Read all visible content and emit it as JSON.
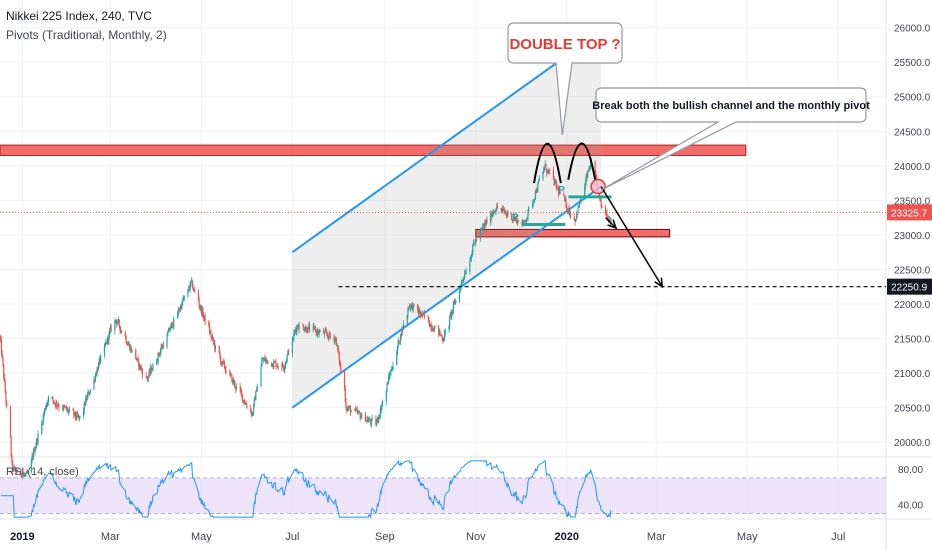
{
  "header": {
    "title": "Nikkei 225 Index, 240, TVC",
    "indicator": "Pivots (Traditional, Monthly, 2)"
  },
  "colors": {
    "up": "#26a69a",
    "down": "#ef5350",
    "channel": "#2196f3",
    "resistance": "#ef5350",
    "pivot": "#26a69a",
    "rsi_line": "#2196f3",
    "rsi_band": "#e9dcfa",
    "annotation_red": "#e53935"
  },
  "chart_data": {
    "type": "candlestick",
    "title": "Nikkei 225 Index, 240, TVC",
    "ylim": [
      19800,
      26400
    ],
    "y_ticks": [
      20000,
      20500,
      21000,
      21500,
      22000,
      22500,
      23000,
      23500,
      24000,
      24500,
      25000,
      25500,
      26000
    ],
    "y_tick_labels": [
      "20000.0",
      "20500.0",
      "21000.0",
      "21500.0",
      "22000.0",
      "22500.0",
      "23000.0",
      "23500.0",
      "24000.0",
      "24500.0",
      "25000.0",
      "25500.0",
      "26000.0"
    ],
    "x_start": "2018-12-17",
    "x_end": "2020-08-02",
    "month_labels": [
      {
        "date": "2019-01-01",
        "label": "2019",
        "bold": true
      },
      {
        "date": "2019-03-01",
        "label": "Mar"
      },
      {
        "date": "2019-05-01",
        "label": "May"
      },
      {
        "date": "2019-07-01",
        "label": "Jul"
      },
      {
        "date": "2019-09-01",
        "label": "Sep"
      },
      {
        "date": "2019-11-01",
        "label": "Nov"
      },
      {
        "date": "2020-01-01",
        "label": "2020",
        "bold": true
      },
      {
        "date": "2020-03-01",
        "label": "Mar"
      },
      {
        "date": "2020-05-01",
        "label": "May"
      },
      {
        "date": "2020-07-01",
        "label": "Jul"
      }
    ],
    "price_path": [
      [
        "2018-12-17",
        21500
      ],
      [
        "2018-12-25",
        19600
      ],
      [
        "2019-01-04",
        19500
      ],
      [
        "2019-01-18",
        20650
      ],
      [
        "2019-02-08",
        20330
      ],
      [
        "2019-03-04",
        21800
      ],
      [
        "2019-03-25",
        20900
      ],
      [
        "2019-04-24",
        22300
      ],
      [
        "2019-05-13",
        21200
      ],
      [
        "2019-06-04",
        20400
      ],
      [
        "2019-06-10",
        21200
      ],
      [
        "2019-06-25",
        21100
      ],
      [
        "2019-07-04",
        21700
      ],
      [
        "2019-07-30",
        21500
      ],
      [
        "2019-08-06",
        20500
      ],
      [
        "2019-08-26",
        20250
      ],
      [
        "2019-09-17",
        22000
      ],
      [
        "2019-09-30",
        21750
      ],
      [
        "2019-10-10",
        21500
      ],
      [
        "2019-10-31",
        22900
      ],
      [
        "2019-11-14",
        23400
      ],
      [
        "2019-12-03",
        23150
      ],
      [
        "2019-12-17",
        24000
      ],
      [
        "2020-01-06",
        23200
      ],
      [
        "2020-01-17",
        24050
      ],
      [
        "2020-01-24",
        23400
      ],
      [
        "2020-01-31",
        23200
      ]
    ],
    "last_price": "23325.7",
    "target_level": "22250.9",
    "channel": {
      "lower_start": [
        "2019-07-01",
        20500
      ],
      "lower_end": [
        "2020-01-24",
        23700
      ],
      "width_points": 2250
    },
    "resistance_zone": {
      "from": "2018-12-17",
      "to": "2020-04-30",
      "low": 24150,
      "high": 24300
    },
    "support_zone": {
      "from": "2019-11-01",
      "to": "2020-03-10",
      "low": 23000,
      "high": 23050
    },
    "pivots": [
      {
        "label": "P",
        "from": "2019-12-02",
        "to": "2019-12-31",
        "value": 23150
      },
      {
        "label": "P",
        "from": "2020-01-02",
        "to": "2020-01-31",
        "value": 23550
      }
    ],
    "annotations": [
      {
        "text": "DOUBLE TOP ?",
        "color": "#e53935"
      },
      {
        "text": "Break both the bullish channel and the monthly pivot",
        "color": "#131722"
      }
    ],
    "rsi": {
      "label": "RSI (14, close)",
      "ylim": [
        25,
        90
      ],
      "band": [
        30,
        70
      ],
      "tick_labels": [
        "80.00",
        "40.00"
      ],
      "tick_values": [
        80,
        40
      ]
    }
  }
}
